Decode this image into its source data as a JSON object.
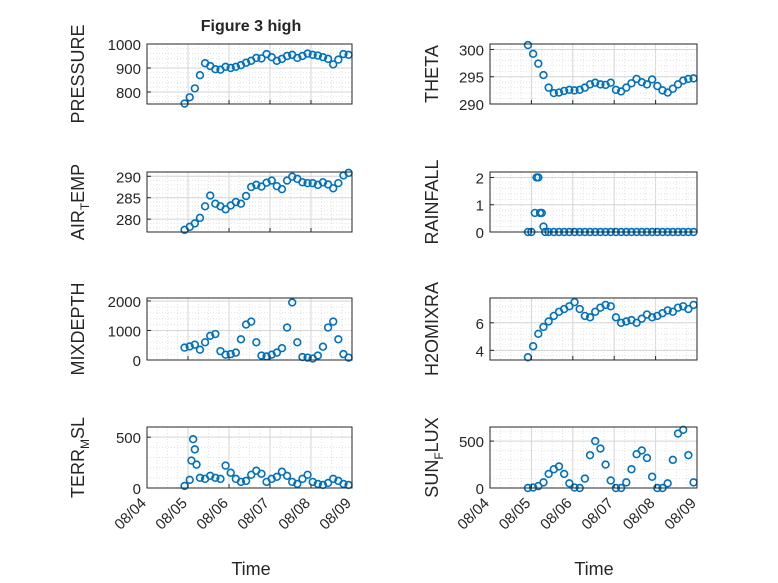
{
  "figure_title": "Figure 3 high",
  "xlabel": "Time",
  "x_tick_labels": [
    "08/04",
    "08/05",
    "08/06",
    "08/07",
    "08/08",
    "08/09"
  ],
  "marker_color": "#0072BD",
  "chart_data": [
    {
      "type": "scatter",
      "ylabel": "PRESSURE",
      "ylim": [
        750,
        1000
      ],
      "yticks": [
        800,
        900,
        1000
      ],
      "grid": true,
      "xlim": [
        "08/04",
        "08/09"
      ],
      "x": [
        "08/04 22:00",
        "08/05 01:00",
        "08/05 04:00",
        "08/05 07:00",
        "08/05 10:00",
        "08/05 13:00",
        "08/05 16:00",
        "08/05 19:00",
        "08/05 22:00",
        "08/06 01:00",
        "08/06 04:00",
        "08/06 07:00",
        "08/06 10:00",
        "08/06 13:00",
        "08/06 16:00",
        "08/06 19:00",
        "08/06 22:00",
        "08/07 01:00",
        "08/07 04:00",
        "08/07 07:00",
        "08/07 10:00",
        "08/07 13:00",
        "08/07 16:00",
        "08/07 19:00",
        "08/07 22:00",
        "08/08 01:00",
        "08/08 04:00",
        "08/08 07:00",
        "08/08 10:00",
        "08/08 13:00",
        "08/08 16:00",
        "08/08 19:00",
        "08/08 22:00"
      ],
      "values": [
        752,
        778,
        815,
        870,
        920,
        908,
        895,
        893,
        905,
        900,
        905,
        912,
        922,
        930,
        942,
        940,
        958,
        945,
        930,
        938,
        950,
        955,
        942,
        950,
        960,
        955,
        952,
        945,
        938,
        915,
        935,
        958,
        955
      ]
    },
    {
      "type": "scatter",
      "ylabel": "THETA",
      "ylim": [
        290,
        301
      ],
      "yticks": [
        290,
        295,
        300
      ],
      "grid": true,
      "xlim": [
        "08/04",
        "08/09"
      ],
      "x": [
        "08/04 22:00",
        "08/05 01:00",
        "08/05 04:00",
        "08/05 07:00",
        "08/05 10:00",
        "08/05 13:00",
        "08/05 16:00",
        "08/05 19:00",
        "08/05 22:00",
        "08/06 01:00",
        "08/06 04:00",
        "08/06 07:00",
        "08/06 10:00",
        "08/06 13:00",
        "08/06 16:00",
        "08/06 19:00",
        "08/06 22:00",
        "08/07 01:00",
        "08/07 04:00",
        "08/07 07:00",
        "08/07 10:00",
        "08/07 13:00",
        "08/07 16:00",
        "08/07 19:00",
        "08/07 22:00",
        "08/08 01:00",
        "08/08 04:00",
        "08/08 07:00",
        "08/08 10:00",
        "08/08 13:00",
        "08/08 16:00",
        "08/08 19:00",
        "08/08 22:00"
      ],
      "values": [
        300.8,
        299.2,
        297.4,
        295.3,
        293.0,
        292.0,
        292.1,
        292.4,
        292.6,
        292.5,
        292.6,
        293.0,
        293.6,
        293.9,
        293.6,
        293.5,
        293.9,
        292.6,
        292.3,
        293.0,
        293.8,
        294.6,
        294.0,
        293.6,
        294.5,
        293.3,
        292.5,
        292.1,
        292.8,
        293.6,
        294.3,
        294.6,
        294.7
      ]
    },
    {
      "type": "scatter",
      "ylabel": "AIR_TEMP",
      "ylim": [
        277,
        291
      ],
      "yticks": [
        280,
        285,
        290
      ],
      "grid": true,
      "xlim": [
        "08/04",
        "08/09"
      ],
      "x": [
        "08/04 22:00",
        "08/05 01:00",
        "08/05 04:00",
        "08/05 07:00",
        "08/05 10:00",
        "08/05 13:00",
        "08/05 16:00",
        "08/05 19:00",
        "08/05 22:00",
        "08/06 01:00",
        "08/06 04:00",
        "08/06 07:00",
        "08/06 10:00",
        "08/06 13:00",
        "08/06 16:00",
        "08/06 19:00",
        "08/06 22:00",
        "08/07 01:00",
        "08/07 04:00",
        "08/07 07:00",
        "08/07 10:00",
        "08/07 13:00",
        "08/07 16:00",
        "08/07 19:00",
        "08/07 22:00",
        "08/08 01:00",
        "08/08 04:00",
        "08/08 07:00",
        "08/08 10:00",
        "08/08 13:00",
        "08/08 16:00",
        "08/08 19:00",
        "08/08 22:00"
      ],
      "values": [
        277.5,
        278.2,
        279.0,
        280.3,
        283.0,
        285.5,
        283.6,
        283.0,
        282.3,
        283.2,
        284.0,
        283.6,
        285.4,
        287.5,
        288.0,
        287.6,
        288.5,
        289.0,
        287.7,
        287.0,
        289.0,
        289.9,
        289.4,
        288.6,
        288.4,
        288.4,
        288.0,
        288.6,
        288.1,
        287.2,
        288.4,
        290.2,
        290.8
      ]
    },
    {
      "type": "scatter",
      "ylabel": "RAINFALL",
      "ylim": [
        0,
        2.2
      ],
      "yticks": [
        0,
        1,
        2
      ],
      "grid": true,
      "xlim": [
        "08/04",
        "08/09"
      ],
      "x": [
        "08/04 22:00",
        "08/05 00:00",
        "08/05 02:00",
        "08/05 03:00",
        "08/05 04:00",
        "08/05 05:00",
        "08/05 06:00",
        "08/05 07:00",
        "08/05 08:00",
        "08/05 10:00",
        "08/05 13:00",
        "08/05 16:00",
        "08/05 19:00",
        "08/05 22:00",
        "08/06 01:00",
        "08/06 04:00",
        "08/06 07:00",
        "08/06 10:00",
        "08/06 13:00",
        "08/06 16:00",
        "08/06 19:00",
        "08/06 22:00",
        "08/07 01:00",
        "08/07 04:00",
        "08/07 07:00",
        "08/07 10:00",
        "08/07 13:00",
        "08/07 16:00",
        "08/07 19:00",
        "08/07 22:00",
        "08/08 01:00",
        "08/08 04:00",
        "08/08 07:00",
        "08/08 10:00",
        "08/08 13:00",
        "08/08 16:00",
        "08/08 19:00",
        "08/08 22:00"
      ],
      "values": [
        0,
        0,
        0.7,
        2.0,
        2.0,
        0.7,
        0.7,
        0.2,
        0,
        0,
        0,
        0,
        0,
        0,
        0,
        0,
        0,
        0,
        0,
        0,
        0,
        0,
        0,
        0,
        0,
        0,
        0,
        0,
        0,
        0,
        0,
        0,
        0,
        0,
        0,
        0,
        0,
        0
      ]
    },
    {
      "type": "scatter",
      "ylabel": "MIXDEPTH",
      "ylim": [
        0,
        2100
      ],
      "yticks": [
        0,
        1000,
        2000
      ],
      "grid": true,
      "xlim": [
        "08/04",
        "08/09"
      ],
      "x": [
        "08/04 22:00",
        "08/05 01:00",
        "08/05 04:00",
        "08/05 07:00",
        "08/05 10:00",
        "08/05 13:00",
        "08/05 16:00",
        "08/05 19:00",
        "08/05 22:00",
        "08/06 01:00",
        "08/06 04:00",
        "08/06 07:00",
        "08/06 10:00",
        "08/06 13:00",
        "08/06 16:00",
        "08/06 19:00",
        "08/06 22:00",
        "08/07 01:00",
        "08/07 04:00",
        "08/07 07:00",
        "08/07 10:00",
        "08/07 13:00",
        "08/07 16:00",
        "08/07 19:00",
        "08/07 22:00",
        "08/08 01:00",
        "08/08 04:00",
        "08/08 07:00",
        "08/08 10:00",
        "08/08 13:00",
        "08/08 16:00",
        "08/08 19:00",
        "08/08 22:00"
      ],
      "values": [
        420,
        460,
        520,
        350,
        600,
        820,
        880,
        300,
        180,
        200,
        250,
        700,
        1200,
        1300,
        600,
        150,
        120,
        180,
        250,
        400,
        1100,
        1950,
        600,
        100,
        80,
        50,
        150,
        450,
        1100,
        1300,
        700,
        200,
        80
      ]
    },
    {
      "type": "scatter",
      "ylabel": "H2OMIXRA",
      "ylim": [
        3.3,
        7.8
      ],
      "yticks": [
        4,
        6
      ],
      "grid": true,
      "xlim": [
        "08/04",
        "08/09"
      ],
      "x": [
        "08/04 22:00",
        "08/05 01:00",
        "08/05 04:00",
        "08/05 07:00",
        "08/05 10:00",
        "08/05 13:00",
        "08/05 16:00",
        "08/05 19:00",
        "08/05 22:00",
        "08/06 01:00",
        "08/06 04:00",
        "08/06 07:00",
        "08/06 10:00",
        "08/06 13:00",
        "08/06 16:00",
        "08/06 19:00",
        "08/06 22:00",
        "08/07 01:00",
        "08/07 04:00",
        "08/07 07:00",
        "08/07 10:00",
        "08/07 13:00",
        "08/07 16:00",
        "08/07 19:00",
        "08/07 22:00",
        "08/08 01:00",
        "08/08 04:00",
        "08/08 07:00",
        "08/08 10:00",
        "08/08 13:00",
        "08/08 16:00",
        "08/08 19:00",
        "08/08 22:00"
      ],
      "values": [
        3.5,
        4.3,
        5.2,
        5.7,
        6.1,
        6.5,
        6.8,
        7.0,
        7.2,
        7.5,
        7.0,
        6.5,
        6.4,
        6.8,
        7.1,
        7.3,
        7.2,
        6.4,
        6.0,
        6.1,
        6.2,
        6.0,
        6.3,
        6.6,
        6.4,
        6.5,
        6.7,
        6.9,
        6.8,
        7.1,
        7.2,
        7.0,
        7.3
      ]
    },
    {
      "type": "scatter",
      "ylabel": "TERR_MSL",
      "ylim": [
        0,
        600
      ],
      "yticks": [
        0,
        500
      ],
      "grid": true,
      "xlim": [
        "08/04",
        "08/09"
      ],
      "x": [
        "08/04 22:00",
        "08/05 01:00",
        "08/05 02:00",
        "08/05 03:00",
        "08/05 04:00",
        "08/05 05:00",
        "08/05 07:00",
        "08/05 10:00",
        "08/05 13:00",
        "08/05 16:00",
        "08/05 19:00",
        "08/05 22:00",
        "08/06 01:00",
        "08/06 04:00",
        "08/06 07:00",
        "08/06 10:00",
        "08/06 13:00",
        "08/06 16:00",
        "08/06 19:00",
        "08/06 22:00",
        "08/07 01:00",
        "08/07 04:00",
        "08/07 07:00",
        "08/07 10:00",
        "08/07 13:00",
        "08/07 16:00",
        "08/07 19:00",
        "08/07 22:00",
        "08/08 01:00",
        "08/08 04:00",
        "08/08 07:00",
        "08/08 10:00",
        "08/08 13:00",
        "08/08 16:00",
        "08/08 19:00",
        "08/08 22:00"
      ],
      "values": [
        20,
        80,
        270,
        480,
        380,
        230,
        100,
        90,
        120,
        100,
        90,
        220,
        150,
        90,
        60,
        70,
        130,
        170,
        140,
        60,
        90,
        110,
        160,
        120,
        60,
        40,
        90,
        130,
        60,
        40,
        30,
        50,
        90,
        70,
        40,
        30
      ]
    },
    {
      "type": "scatter",
      "ylabel": "SUN_FLUX",
      "ylim": [
        0,
        650
      ],
      "yticks": [
        0,
        500
      ],
      "grid": true,
      "xlim": [
        "08/04",
        "08/09"
      ],
      "x": [
        "08/04 22:00",
        "08/05 01:00",
        "08/05 04:00",
        "08/05 07:00",
        "08/05 10:00",
        "08/05 13:00",
        "08/05 16:00",
        "08/05 19:00",
        "08/05 22:00",
        "08/06 01:00",
        "08/06 04:00",
        "08/06 07:00",
        "08/06 10:00",
        "08/06 13:00",
        "08/06 16:00",
        "08/06 19:00",
        "08/06 22:00",
        "08/07 01:00",
        "08/07 04:00",
        "08/07 07:00",
        "08/07 10:00",
        "08/07 13:00",
        "08/07 16:00",
        "08/07 19:00",
        "08/07 22:00",
        "08/08 01:00",
        "08/08 04:00",
        "08/08 07:00",
        "08/08 10:00",
        "08/08 13:00",
        "08/08 16:00",
        "08/08 19:00",
        "08/08 22:00"
      ],
      "values": [
        0,
        5,
        20,
        60,
        150,
        200,
        230,
        150,
        50,
        5,
        0,
        100,
        350,
        500,
        420,
        250,
        80,
        0,
        0,
        60,
        200,
        360,
        400,
        320,
        120,
        0,
        0,
        50,
        300,
        580,
        620,
        350,
        60
      ]
    }
  ]
}
